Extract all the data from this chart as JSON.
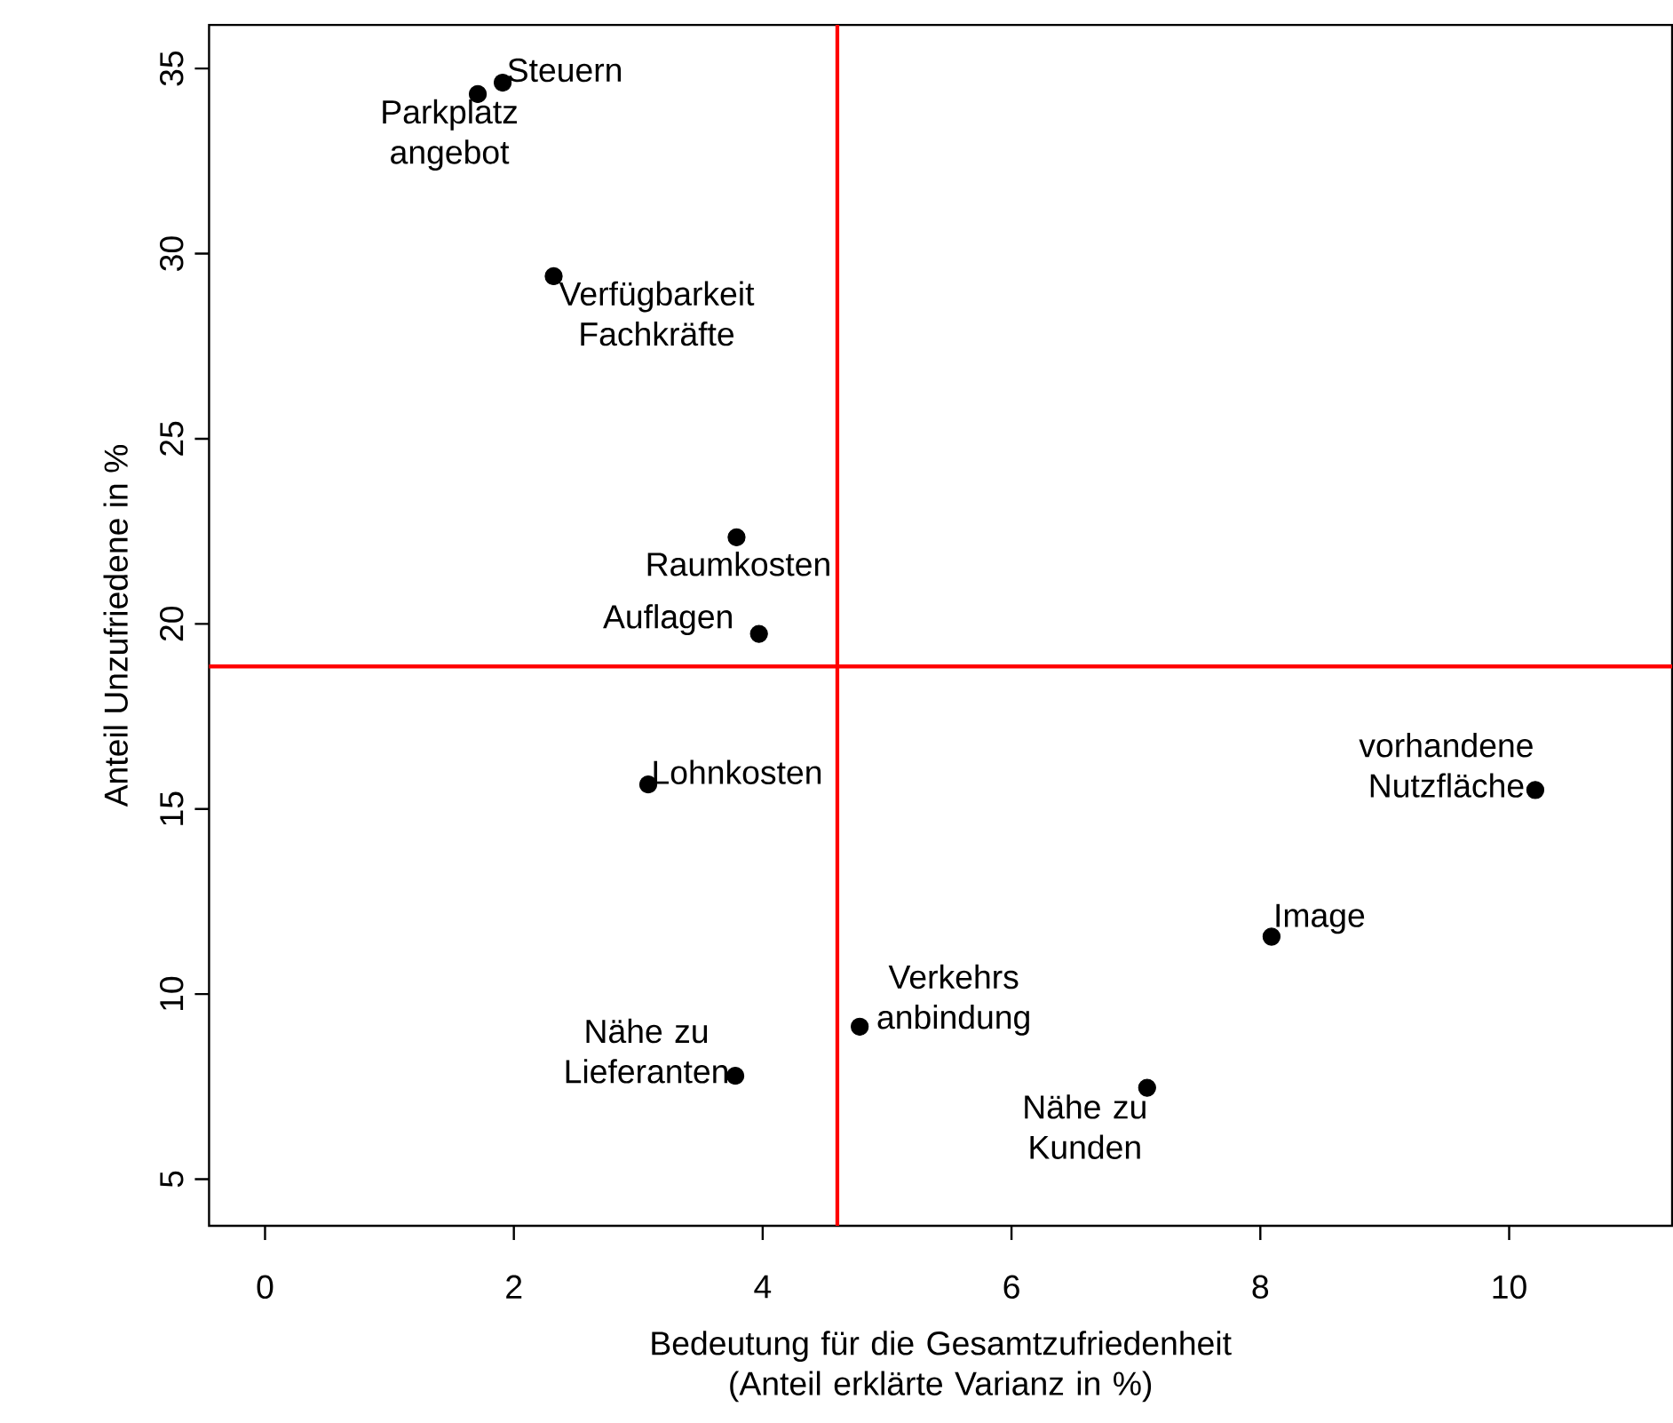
{
  "chart_data": {
    "type": "scatter",
    "xlabel": "Bedeutung für die Gesamtzufriedenheit (Anteil erklärte Varianz in %)",
    "ylabel": "Anteil Unzufriedene in %",
    "x": [
      1.91,
      1.71,
      2.32,
      3.79,
      3.97,
      3.08,
      3.78,
      4.78,
      7.09,
      8.09,
      10.21
    ],
    "series": [
      {
        "color": "#000000",
        "values": [
          34.62,
          34.31,
          29.39,
          22.34,
          19.73,
          15.66,
          7.79,
          9.12,
          7.47,
          11.55,
          15.51
        ]
      }
    ],
    "annotations": [
      {
        "text": "Steuern",
        "x": 1.91,
        "y": 34.62
      },
      {
        "text": "Parkplatz angebot",
        "x": 1.71,
        "y": 34.31
      },
      {
        "text": "Verfügbarkeit Fachkräfte",
        "x": 2.32,
        "y": 29.39
      },
      {
        "text": "Raumkosten",
        "x": 3.79,
        "y": 22.34
      },
      {
        "text": "Auflagen",
        "x": 3.97,
        "y": 19.73
      },
      {
        "text": "Lohnkosten",
        "x": 3.08,
        "y": 15.66
      },
      {
        "text": "Nähe zu Lieferanten",
        "x": 3.78,
        "y": 7.79
      },
      {
        "text": "Verkehrs anbindung",
        "x": 4.78,
        "y": 9.12
      },
      {
        "text": "Nähe zu Kunden",
        "x": 7.09,
        "y": 7.47
      },
      {
        "text": "Image",
        "x": 8.09,
        "y": 11.55
      },
      {
        "text": "vorhandene Nutzfläche",
        "x": 10.21,
        "y": 15.51
      }
    ],
    "ref_lines": [
      {
        "axis": "x",
        "value": 4.6,
        "color": "#ff0000"
      },
      {
        "axis": "y",
        "value": 18.85,
        "color": "#ff0000"
      }
    ],
    "xlim": [
      -0.45,
      11.31
    ],
    "ylim": [
      3.74,
      36.18
    ],
    "xticks": [
      0,
      2,
      4,
      6,
      8,
      10
    ],
    "yticks": [
      5,
      10,
      15,
      20,
      25,
      30,
      35
    ],
    "marker": "circle",
    "grid": false
  }
}
